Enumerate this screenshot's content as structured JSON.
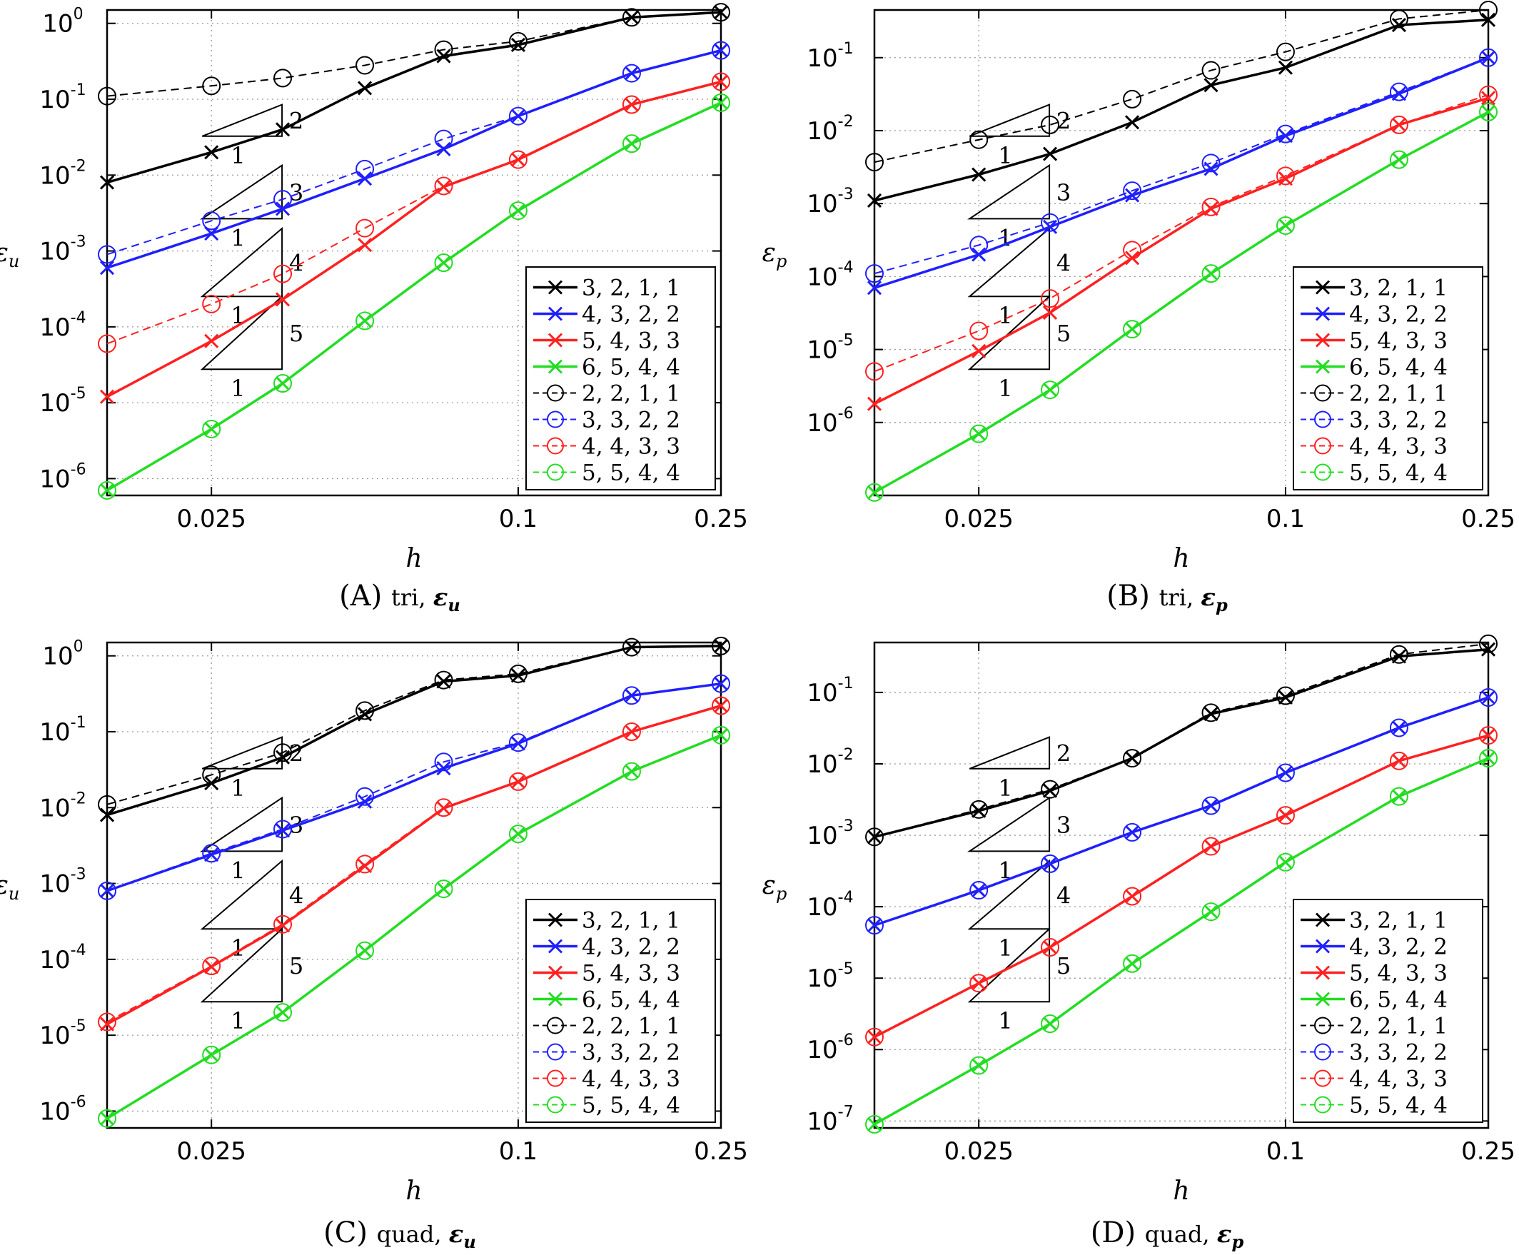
{
  "figure": {
    "colors": {
      "black": "#000000",
      "blue": "#1f1fff",
      "red": "#ff2020",
      "green": "#22dd22"
    },
    "legend_labels": [
      "3, 2, 1, 1",
      "4, 3, 2, 2",
      "5, 4, 3, 3",
      "6, 5, 4, 4",
      "2, 2, 1, 1",
      "3, 3, 2, 2",
      "4, 4, 3, 3",
      "5, 5, 4, 4"
    ],
    "slope_labels": {
      "run": "1",
      "rises": [
        "2",
        "3",
        "4",
        "5"
      ]
    }
  },
  "chart_data": [
    {
      "type": "line",
      "caption_prefix": "(A)",
      "caption_kind": "tri,",
      "caption_sym": "ε",
      "caption_sub": "u",
      "xlabel": "h",
      "ylabel": "ε",
      "ylabel_sub": "u",
      "xscale": "log",
      "yscale": "log",
      "xlim": [
        0.0156,
        0.25
      ],
      "ylim": [
        6e-07,
        1.5
      ],
      "grid": true,
      "legend": "lower-right",
      "xticks": [
        "0.025",
        "0.1",
        "0.25"
      ],
      "xtick_values": [
        0.025,
        0.1,
        0.25
      ],
      "yticks": [
        {
          "base": "10",
          "exp": "0"
        },
        {
          "base": "10",
          "exp": "-1"
        },
        {
          "base": "10",
          "exp": "-2"
        },
        {
          "base": "10",
          "exp": "-3"
        },
        {
          "base": "10",
          "exp": "-4"
        },
        {
          "base": "10",
          "exp": "-5"
        },
        {
          "base": "10",
          "exp": "-6"
        }
      ],
      "ytick_values": [
        1,
        0.1,
        0.01,
        0.001,
        0.0001,
        1e-05,
        1e-06
      ],
      "x": [
        0.0156,
        0.025,
        0.0345,
        0.05,
        0.0714,
        0.1,
        0.167,
        0.25
      ],
      "series": [
        {
          "name": "3, 2, 1, 1",
          "color": "#000000",
          "style": "solid",
          "marker": "x",
          "values": [
            0.008,
            0.02,
            0.04,
            0.14,
            0.37,
            0.52,
            1.2,
            1.4
          ]
        },
        {
          "name": "4, 3, 2, 2",
          "color": "#1f1fff",
          "style": "solid",
          "marker": "x",
          "values": [
            0.0006,
            0.0017,
            0.0036,
            0.009,
            0.022,
            0.06,
            0.22,
            0.44
          ]
        },
        {
          "name": "5, 4, 3, 3",
          "color": "#ff2020",
          "style": "solid",
          "marker": "x",
          "values": [
            1.2e-05,
            6.5e-05,
            0.00023,
            0.0012,
            0.007,
            0.016,
            0.085,
            0.17
          ]
        },
        {
          "name": "6, 5, 4, 4",
          "color": "#22dd22",
          "style": "solid",
          "marker": "x",
          "values": [
            7e-07,
            4.5e-06,
            1.8e-05,
            0.00012,
            0.0007,
            0.0034,
            0.026,
            0.09
          ]
        },
        {
          "name": "2, 2, 1, 1",
          "color": "#000000",
          "style": "dashed",
          "marker": "o",
          "values": [
            0.11,
            0.15,
            0.19,
            0.28,
            0.45,
            0.58,
            1.2,
            1.4
          ]
        },
        {
          "name": "3, 3, 2, 2",
          "color": "#1f1fff",
          "style": "dashed",
          "marker": "o",
          "values": [
            0.0009,
            0.0025,
            0.0048,
            0.012,
            0.03,
            0.06,
            0.22,
            0.44
          ]
        },
        {
          "name": "4, 4, 3, 3",
          "color": "#ff2020",
          "style": "dashed",
          "marker": "o",
          "values": [
            6e-05,
            0.0002,
            0.0005,
            0.002,
            0.0072,
            0.016,
            0.085,
            0.17
          ]
        },
        {
          "name": "5, 5, 4, 4",
          "color": "#22dd22",
          "style": "dashed",
          "marker": "o",
          "values": [
            7e-07,
            4.5e-06,
            1.8e-05,
            0.00012,
            0.0007,
            0.0034,
            0.026,
            0.09
          ]
        }
      ]
    },
    {
      "type": "line",
      "caption_prefix": "(B)",
      "caption_kind": "tri,",
      "caption_sym": "ε",
      "caption_sub": "p",
      "xlabel": "h",
      "ylabel": "ε",
      "ylabel_sub": "p",
      "xscale": "log",
      "yscale": "log",
      "xlim": [
        0.0156,
        0.25
      ],
      "ylim": [
        1e-07,
        0.45
      ],
      "grid": true,
      "legend": "lower-right",
      "xticks": [
        "0.025",
        "0.1",
        "0.25"
      ],
      "xtick_values": [
        0.025,
        0.1,
        0.25
      ],
      "yticks": [
        {
          "base": "10",
          "exp": "-1"
        },
        {
          "base": "10",
          "exp": "-2"
        },
        {
          "base": "10",
          "exp": "-3"
        },
        {
          "base": "10",
          "exp": "-4"
        },
        {
          "base": "10",
          "exp": "-5"
        },
        {
          "base": "10",
          "exp": "-6"
        }
      ],
      "ytick_values": [
        0.1,
        0.01,
        0.001,
        0.0001,
        1e-05,
        1e-06
      ],
      "x": [
        0.0156,
        0.025,
        0.0345,
        0.05,
        0.0714,
        0.1,
        0.167,
        0.25
      ],
      "series": [
        {
          "name": "3, 2, 1, 1",
          "color": "#000000",
          "style": "solid",
          "marker": "x",
          "values": [
            0.0011,
            0.0025,
            0.0048,
            0.013,
            0.042,
            0.073,
            0.28,
            0.33
          ]
        },
        {
          "name": "4, 3, 2, 2",
          "color": "#1f1fff",
          "style": "solid",
          "marker": "x",
          "values": [
            7e-05,
            0.0002,
            0.00048,
            0.0013,
            0.003,
            0.0085,
            0.032,
            0.1
          ]
        },
        {
          "name": "5, 4, 3, 3",
          "color": "#ff2020",
          "style": "solid",
          "marker": "x",
          "values": [
            1.8e-06,
            9.5e-06,
            3.2e-05,
            0.00018,
            0.00085,
            0.0022,
            0.012,
            0.028
          ]
        },
        {
          "name": "6, 5, 4, 4",
          "color": "#22dd22",
          "style": "solid",
          "marker": "x",
          "values": [
            1.1e-07,
            7e-07,
            2.8e-06,
            1.9e-05,
            0.00011,
            0.0005,
            0.004,
            0.018
          ]
        },
        {
          "name": "2, 2, 1, 1",
          "color": "#000000",
          "style": "dashed",
          "marker": "o",
          "values": [
            0.0037,
            0.0075,
            0.012,
            0.027,
            0.067,
            0.12,
            0.34,
            0.45
          ]
        },
        {
          "name": "3, 3, 2, 2",
          "color": "#1f1fff",
          "style": "dashed",
          "marker": "o",
          "values": [
            0.00011,
            0.00027,
            0.00055,
            0.0015,
            0.0036,
            0.009,
            0.034,
            0.1
          ]
        },
        {
          "name": "4, 4, 3, 3",
          "color": "#ff2020",
          "style": "dashed",
          "marker": "o",
          "values": [
            5e-06,
            1.8e-05,
            5e-05,
            0.00023,
            0.0009,
            0.0024,
            0.012,
            0.031
          ]
        },
        {
          "name": "5, 5, 4, 4",
          "color": "#22dd22",
          "style": "dashed",
          "marker": "o",
          "values": [
            1.1e-07,
            7e-07,
            2.8e-06,
            1.9e-05,
            0.00011,
            0.0005,
            0.004,
            0.018
          ]
        }
      ]
    },
    {
      "type": "line",
      "caption_prefix": "(C)",
      "caption_kind": "quad,",
      "caption_sym": "ε",
      "caption_sub": "u",
      "xlabel": "h",
      "ylabel": "ε",
      "ylabel_sub": "u",
      "xscale": "log",
      "yscale": "log",
      "xlim": [
        0.0156,
        0.25
      ],
      "ylim": [
        6e-07,
        1.5
      ],
      "grid": true,
      "legend": "lower-right",
      "xticks": [
        "0.025",
        "0.1",
        "0.25"
      ],
      "xtick_values": [
        0.025,
        0.1,
        0.25
      ],
      "yticks": [
        {
          "base": "10",
          "exp": "0"
        },
        {
          "base": "10",
          "exp": "-1"
        },
        {
          "base": "10",
          "exp": "-2"
        },
        {
          "base": "10",
          "exp": "-3"
        },
        {
          "base": "10",
          "exp": "-4"
        },
        {
          "base": "10",
          "exp": "-5"
        },
        {
          "base": "10",
          "exp": "-6"
        }
      ],
      "ytick_values": [
        1,
        0.1,
        0.01,
        0.001,
        0.0001,
        1e-05,
        1e-06
      ],
      "x": [
        0.0156,
        0.025,
        0.0345,
        0.05,
        0.0714,
        0.1,
        0.167,
        0.25
      ],
      "series": [
        {
          "name": "3, 2, 1, 1",
          "color": "#000000",
          "style": "solid",
          "marker": "x",
          "values": [
            0.008,
            0.021,
            0.046,
            0.17,
            0.46,
            0.55,
            1.3,
            1.35
          ]
        },
        {
          "name": "4, 3, 2, 2",
          "color": "#1f1fff",
          "style": "solid",
          "marker": "x",
          "values": [
            0.0008,
            0.0024,
            0.005,
            0.012,
            0.033,
            0.07,
            0.3,
            0.43
          ]
        },
        {
          "name": "5, 4, 3, 3",
          "color": "#ff2020",
          "style": "solid",
          "marker": "x",
          "values": [
            1.4e-05,
            8e-05,
            0.00028,
            0.0017,
            0.0098,
            0.022,
            0.1,
            0.22
          ]
        },
        {
          "name": "6, 5, 4, 4",
          "color": "#22dd22",
          "style": "solid",
          "marker": "x",
          "values": [
            8e-07,
            5.5e-06,
            2e-05,
            0.00013,
            0.00085,
            0.0045,
            0.03,
            0.09
          ]
        },
        {
          "name": "2, 2, 1, 1",
          "color": "#000000",
          "style": "dashed",
          "marker": "o",
          "values": [
            0.011,
            0.027,
            0.053,
            0.19,
            0.48,
            0.58,
            1.3,
            1.35
          ]
        },
        {
          "name": "3, 3, 2, 2",
          "color": "#1f1fff",
          "style": "dashed",
          "marker": "o",
          "values": [
            0.0008,
            0.0025,
            0.0052,
            0.014,
            0.04,
            0.072,
            0.3,
            0.43
          ]
        },
        {
          "name": "4, 4, 3, 3",
          "color": "#ff2020",
          "style": "dashed",
          "marker": "o",
          "values": [
            1.5e-05,
            8.2e-05,
            0.00029,
            0.0018,
            0.01,
            0.022,
            0.1,
            0.22
          ]
        },
        {
          "name": "5, 5, 4, 4",
          "color": "#22dd22",
          "style": "dashed",
          "marker": "o",
          "values": [
            8e-07,
            5.5e-06,
            2e-05,
            0.00013,
            0.00085,
            0.0045,
            0.03,
            0.09
          ]
        }
      ]
    },
    {
      "type": "line",
      "caption_prefix": "(D)",
      "caption_kind": "quad,",
      "caption_sym": "ε",
      "caption_sub": "p",
      "xlabel": "h",
      "ylabel": "ε",
      "ylabel_sub": "p",
      "xscale": "log",
      "yscale": "log",
      "xlim": [
        0.0156,
        0.25
      ],
      "ylim": [
        8e-08,
        0.5
      ],
      "grid": true,
      "legend": "lower-right",
      "xticks": [
        "0.025",
        "0.1",
        "0.25"
      ],
      "xtick_values": [
        0.025,
        0.1,
        0.25
      ],
      "yticks": [
        {
          "base": "10",
          "exp": "-1"
        },
        {
          "base": "10",
          "exp": "-2"
        },
        {
          "base": "10",
          "exp": "-3"
        },
        {
          "base": "10",
          "exp": "-4"
        },
        {
          "base": "10",
          "exp": "-5"
        },
        {
          "base": "10",
          "exp": "-6"
        },
        {
          "base": "10",
          "exp": "-7"
        }
      ],
      "ytick_values": [
        0.1,
        0.01,
        0.001,
        0.0001,
        1e-05,
        1e-06,
        1e-07
      ],
      "x": [
        0.0156,
        0.025,
        0.0345,
        0.05,
        0.0714,
        0.1,
        0.167,
        0.25
      ],
      "series": [
        {
          "name": "3, 2, 1, 1",
          "color": "#000000",
          "style": "solid",
          "marker": "x",
          "values": [
            0.00095,
            0.0022,
            0.0042,
            0.012,
            0.05,
            0.085,
            0.32,
            0.4
          ]
        },
        {
          "name": "4, 3, 2, 2",
          "color": "#1f1fff",
          "style": "solid",
          "marker": "x",
          "values": [
            5.5e-05,
            0.00017,
            0.0004,
            0.0011,
            0.0026,
            0.0075,
            0.032,
            0.085
          ]
        },
        {
          "name": "5, 4, 3, 3",
          "color": "#ff2020",
          "style": "solid",
          "marker": "x",
          "values": [
            1.5e-06,
            8.5e-06,
            2.7e-05,
            0.00014,
            0.0007,
            0.0019,
            0.011,
            0.025
          ]
        },
        {
          "name": "6, 5, 4, 4",
          "color": "#22dd22",
          "style": "solid",
          "marker": "x",
          "values": [
            9e-08,
            6e-07,
            2.3e-06,
            1.6e-05,
            8.5e-05,
            0.00042,
            0.0035,
            0.012
          ]
        },
        {
          "name": "2, 2, 1, 1",
          "color": "#000000",
          "style": "dashed",
          "marker": "o",
          "values": [
            0.00095,
            0.0023,
            0.0044,
            0.012,
            0.052,
            0.09,
            0.34,
            0.48
          ]
        },
        {
          "name": "3, 3, 2, 2",
          "color": "#1f1fff",
          "style": "dashed",
          "marker": "o",
          "values": [
            5.5e-05,
            0.00017,
            0.0004,
            0.0011,
            0.0026,
            0.0075,
            0.032,
            0.085
          ]
        },
        {
          "name": "4, 4, 3, 3",
          "color": "#ff2020",
          "style": "dashed",
          "marker": "o",
          "values": [
            1.5e-06,
            8.5e-06,
            2.7e-05,
            0.00014,
            0.0007,
            0.0019,
            0.011,
            0.025
          ]
        },
        {
          "name": "5, 5, 4, 4",
          "color": "#22dd22",
          "style": "dashed",
          "marker": "o",
          "values": [
            9e-08,
            6e-07,
            2.3e-06,
            1.6e-05,
            8.5e-05,
            0.00042,
            0.0035,
            0.012
          ]
        }
      ]
    }
  ]
}
